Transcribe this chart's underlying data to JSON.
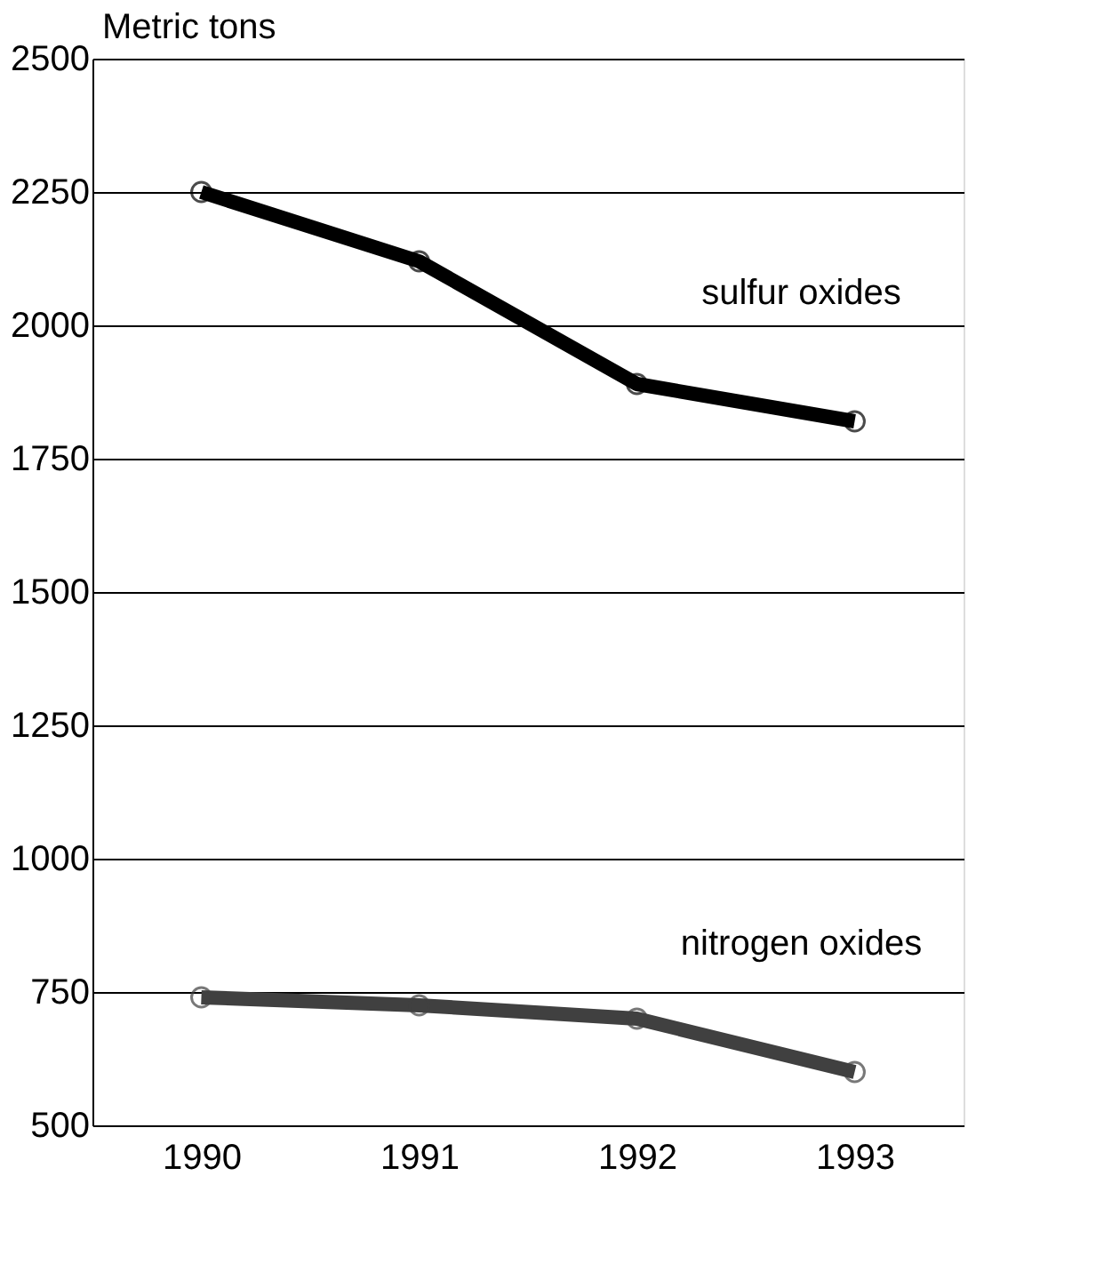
{
  "chart_data": {
    "type": "line",
    "ylabel": "Metric tons",
    "categories": [
      "1990",
      "1991",
      "1992",
      "1993"
    ],
    "series": [
      {
        "name": "sulfur oxides",
        "color": "#000000",
        "values": [
          2250,
          2120,
          1890,
          1820
        ]
      },
      {
        "name": "nitrogen oxides",
        "color": "#404040",
        "values": [
          740,
          725,
          700,
          600
        ]
      }
    ],
    "ylim": [
      500,
      2500
    ],
    "yticks": [
      500,
      750,
      1000,
      1250,
      1500,
      1750,
      2000,
      2250,
      2500
    ],
    "grid": "y",
    "marker": "circle",
    "line_style": "solid"
  }
}
